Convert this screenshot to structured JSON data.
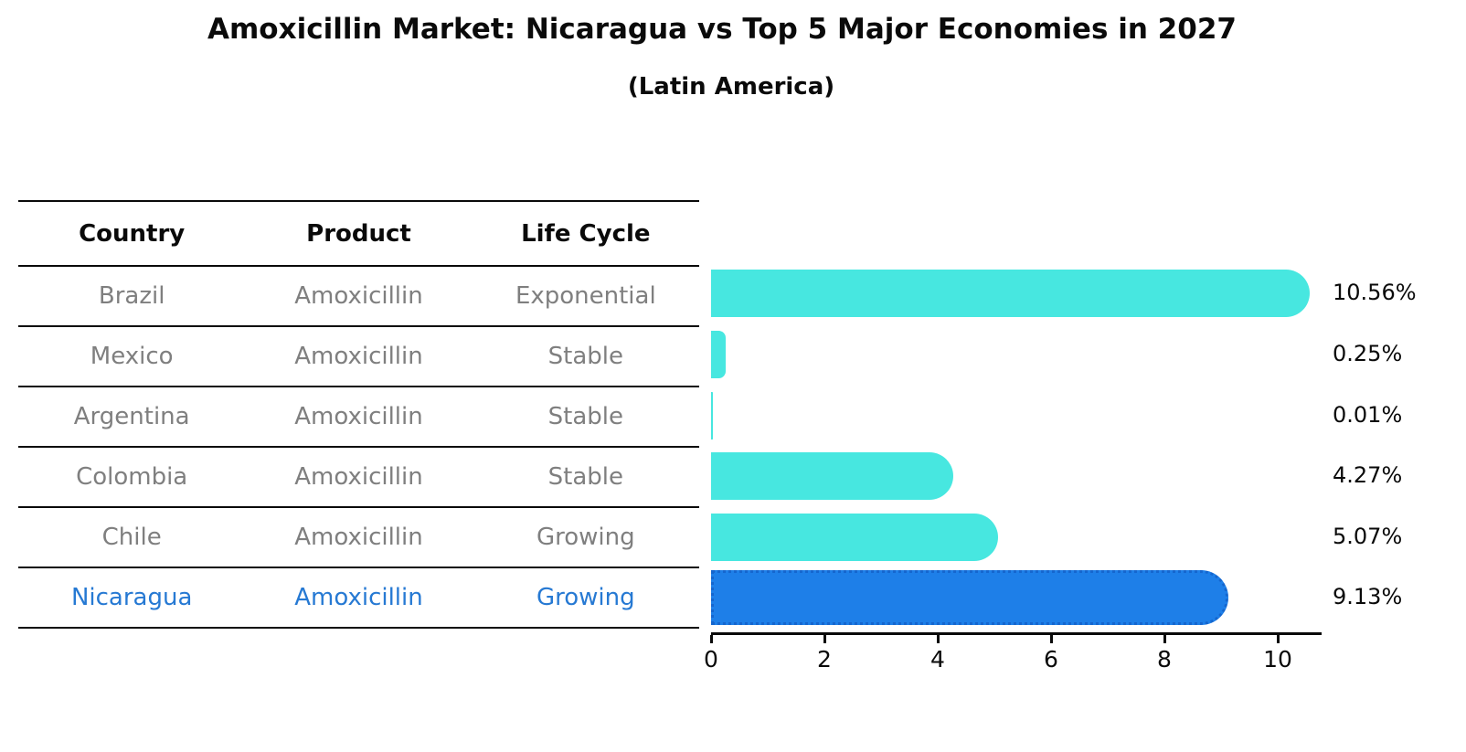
{
  "title": "Amoxicillin Market: Nicaragua vs Top 5 Major Economies in 2027",
  "subtitle": "(Latin America)",
  "table": {
    "headers": [
      "Country",
      "Product",
      "Life Cycle"
    ],
    "rows": [
      {
        "country": "Brazil",
        "product": "Amoxicillin",
        "life_cycle": "Exponential",
        "highlighted": false
      },
      {
        "country": "Mexico",
        "product": "Amoxicillin",
        "life_cycle": "Stable",
        "highlighted": false
      },
      {
        "country": "Argentina",
        "product": "Amoxicillin",
        "life_cycle": "Stable",
        "highlighted": false
      },
      {
        "country": "Colombia",
        "product": "Amoxicillin",
        "life_cycle": "Stable",
        "highlighted": false
      },
      {
        "country": "Chile",
        "product": "Amoxicillin",
        "life_cycle": "Growing",
        "highlighted": false
      },
      {
        "country": "Nicaragua",
        "product": "Amoxicillin",
        "life_cycle": "Growing",
        "highlighted": true
      }
    ]
  },
  "chart_data": {
    "type": "bar",
    "orientation": "horizontal",
    "title": "Amoxicillin Market: Nicaragua vs Top 5 Major Economies in 2027",
    "subtitle": "(Latin America)",
    "categories": [
      "Brazil",
      "Mexico",
      "Argentina",
      "Colombia",
      "Chile",
      "Nicaragua"
    ],
    "values": [
      10.56,
      0.25,
      0.01,
      4.27,
      5.07,
      9.13
    ],
    "value_labels": [
      "10.56%",
      "0.25%",
      "0.01%",
      "4.27%",
      "5.07%",
      "9.13%"
    ],
    "xlim": [
      0,
      10.8
    ],
    "xticks": [
      0,
      2,
      4,
      6,
      8,
      10
    ],
    "grid": false,
    "legend": false,
    "highlight_index": 5
  },
  "colors": {
    "bar": "#47e7e0",
    "highlight_bar": "#1e7fe8",
    "highlight_bar_border": "#1566ce",
    "highlight_text": "#2679d3",
    "text": "#0a0a0a",
    "muted_text": "#7f7f7f"
  }
}
